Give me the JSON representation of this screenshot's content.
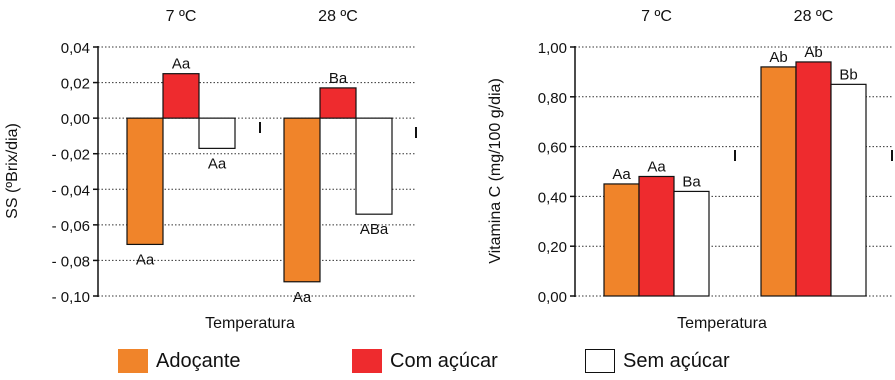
{
  "chart_data": [
    {
      "type": "bar",
      "title": "",
      "xlabel": "Temperatura",
      "ylabel": "SS (ºBrix/dia)",
      "categories": [
        "7 ºC",
        "28 ºC"
      ],
      "ylim": [
        -0.1,
        0.04
      ],
      "yticks": [
        "0,04",
        "0,02",
        "0,00",
        "- 0,02",
        "- 0,04",
        "- 0,06",
        "- 0,08",
        "- 0,10"
      ],
      "ytick_values": [
        0.04,
        0.02,
        0.0,
        -0.02,
        -0.04,
        -0.06,
        -0.08,
        -0.1
      ],
      "grid": "dotted horizontal",
      "series": [
        {
          "name": "Adoçante",
          "values": [
            -0.071,
            -0.092
          ],
          "labels": [
            "Aa",
            "Aa"
          ]
        },
        {
          "name": "Com açúcar",
          "values": [
            0.025,
            0.017
          ],
          "labels": [
            "Aa",
            "Ba"
          ]
        },
        {
          "name": "Sem açúcar",
          "values": [
            -0.017,
            -0.054
          ],
          "labels": [
            "Aa",
            "ABa"
          ]
        }
      ]
    },
    {
      "type": "bar",
      "title": "",
      "xlabel": "Temperatura",
      "ylabel": "Vitamina C (mg/100 g/dia)",
      "categories": [
        "7 ºC",
        "28 ºC"
      ],
      "ylim": [
        0,
        1.0
      ],
      "yticks": [
        "1,00",
        "0,80",
        "0,60",
        "0,40",
        "0,20",
        "0,00"
      ],
      "ytick_values": [
        1.0,
        0.8,
        0.6,
        0.4,
        0.2,
        0.0
      ],
      "grid": "dotted horizontal",
      "series": [
        {
          "name": "Adoçante",
          "values": [
            0.45,
            0.92
          ],
          "labels": [
            "Aa",
            "Ab"
          ]
        },
        {
          "name": "Com açúcar",
          "values": [
            0.48,
            0.94
          ],
          "labels": [
            "Aa",
            "Ab"
          ]
        },
        {
          "name": "Sem açúcar",
          "values": [
            0.42,
            0.85
          ],
          "labels": [
            "Ba",
            "Bb"
          ]
        }
      ]
    }
  ],
  "legend": [
    {
      "label": "Adoçante",
      "color": "#f0842a"
    },
    {
      "label": "Com açúcar",
      "color": "#ee2b2e"
    },
    {
      "label": "Sem açúcar",
      "color": "#ffffff"
    }
  ]
}
